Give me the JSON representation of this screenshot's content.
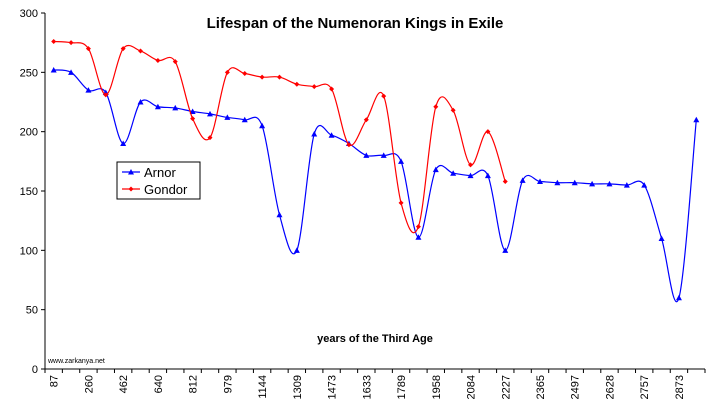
{
  "chart_data": {
    "type": "line",
    "title": "Lifespan of the Numenoran Kings in Exile",
    "xlabel": "years of the Third Age",
    "ylabel": "",
    "ylim": [
      0,
      300
    ],
    "yticks": [
      0,
      50,
      100,
      150,
      200,
      250,
      300
    ],
    "grid": false,
    "legend_position": "middle-left",
    "credit": "www.zarkanya.net",
    "x_tick_labels": [
      "87",
      "",
      "260",
      "",
      "462",
      "",
      "640",
      "",
      "812",
      "",
      "979",
      "",
      "1144",
      "",
      "1309",
      "",
      "1473",
      "",
      "1633",
      "",
      "1789",
      "",
      "1958",
      "",
      "2084",
      "",
      "2227",
      "",
      "2365",
      "",
      "2497",
      "",
      "2628",
      "",
      "2757",
      "",
      "2873",
      ""
    ],
    "series": [
      {
        "name": "Arnor",
        "color": "#0000ff",
        "marker": "triangle",
        "values": [
          252,
          250,
          235,
          233,
          190,
          225,
          221,
          220,
          217,
          215,
          212,
          210,
          205,
          130,
          100,
          198,
          197,
          190,
          180,
          180,
          175,
          111,
          168,
          165,
          163,
          163,
          100,
          159,
          158,
          157,
          157,
          156,
          156,
          155,
          155,
          110,
          60,
          210
        ]
      },
      {
        "name": "Gondor",
        "color": "#ff0000",
        "marker": "diamond",
        "values": [
          276,
          275,
          270,
          231,
          270,
          268,
          260,
          259,
          211,
          195,
          250,
          249,
          246,
          246,
          240,
          238,
          236,
          189,
          210,
          230,
          140,
          120,
          221,
          218,
          172,
          200,
          158
        ]
      }
    ]
  }
}
